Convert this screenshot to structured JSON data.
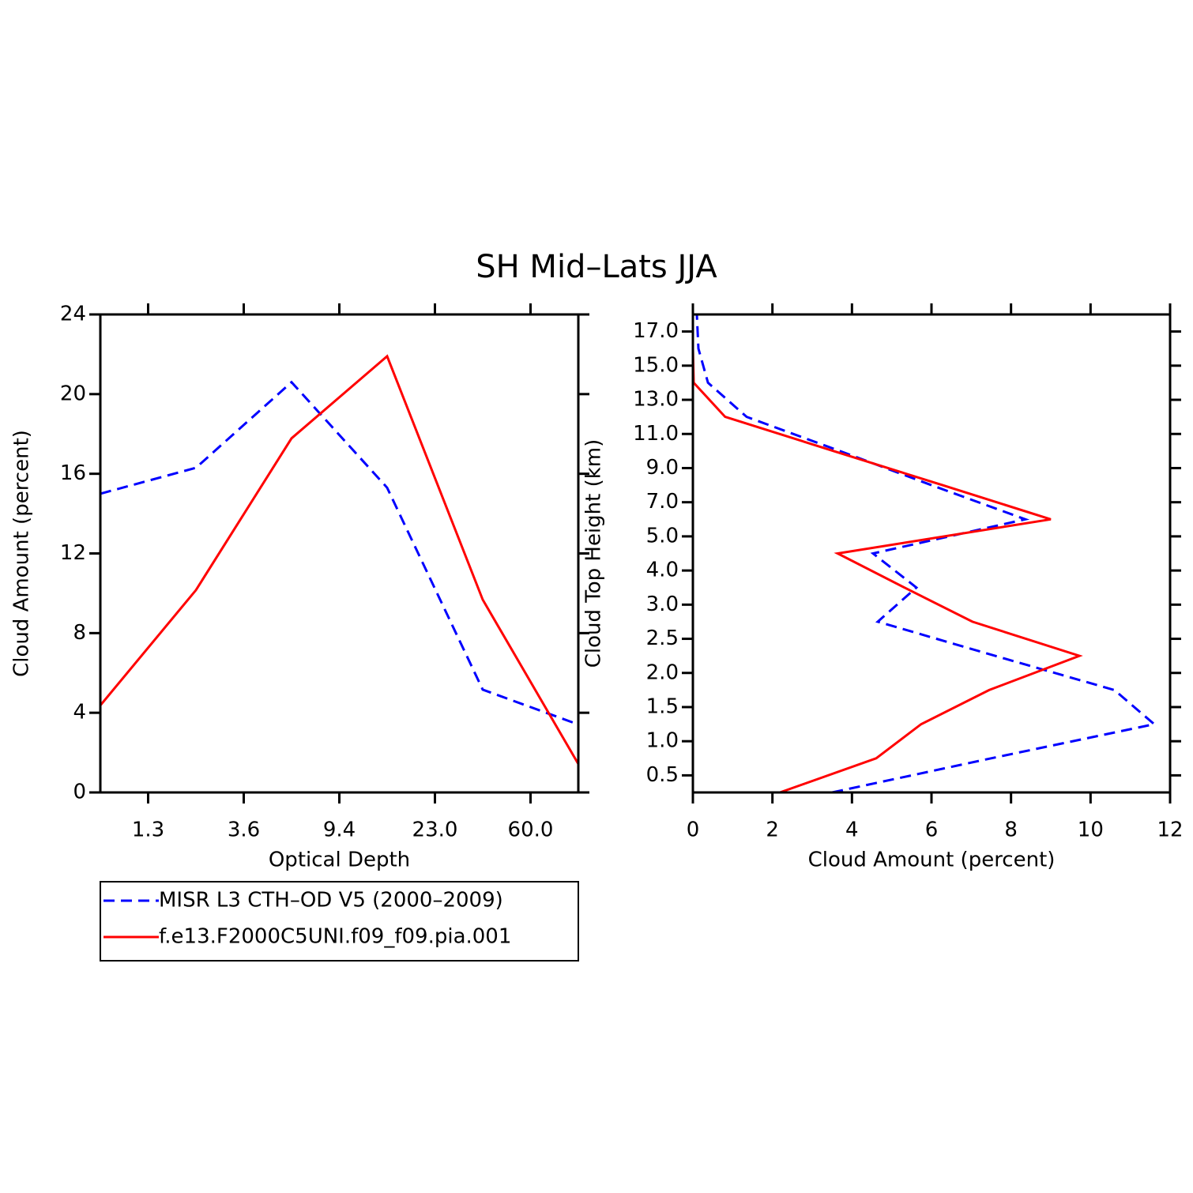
{
  "title": "SH Mid–Lats JJA",
  "chart_data": [
    {
      "type": "line",
      "orientation": "vertical",
      "xlabel": "Optical Depth",
      "ylabel": "Cloud Amount (percent)",
      "x": [
        0,
        1,
        2,
        3,
        4,
        5
      ],
      "xlim": [
        0,
        5
      ],
      "xticks": [
        {
          "value": 0.5,
          "label": "1.3"
        },
        {
          "value": 1.5,
          "label": "3.6"
        },
        {
          "value": 2.5,
          "label": "9.4"
        },
        {
          "value": 3.5,
          "label": "23.0"
        },
        {
          "value": 4.5,
          "label": "60.0"
        }
      ],
      "ylim": [
        0,
        24
      ],
      "yticks": [
        0,
        4,
        8,
        12,
        16,
        20,
        24
      ],
      "grid": false,
      "legend": "below",
      "series": [
        {
          "name": "MISR L3 CTH–OD V5 (2000–2009)",
          "color": "#0000ff",
          "style": "dashed",
          "values": [
            15.0,
            16.3,
            20.6,
            15.3,
            5.16,
            3.41
          ]
        },
        {
          "name": "f.e13.F2000C5UNI.f09_f09.pia.001",
          "color": "#ff0000",
          "style": "solid",
          "values": [
            4.37,
            10.16,
            17.78,
            21.9,
            9.68,
            1.43
          ]
        }
      ]
    },
    {
      "type": "line",
      "orientation": "horizontal",
      "xlabel": "Cloud Amount (percent)",
      "ylabel": "Cloud Top Height (km)",
      "y": [
        0,
        1,
        2,
        3,
        4,
        5,
        6,
        7,
        8,
        9,
        10,
        11,
        12,
        13,
        14
      ],
      "ylim": [
        0,
        14
      ],
      "yticks": [
        {
          "value": 0.5,
          "label": "0.5"
        },
        {
          "value": 1.5,
          "label": "1.0"
        },
        {
          "value": 2.5,
          "label": "1.5"
        },
        {
          "value": 3.5,
          "label": "2.0"
        },
        {
          "value": 4.5,
          "label": "2.5"
        },
        {
          "value": 5.5,
          "label": "3.0"
        },
        {
          "value": 6.5,
          "label": "4.0"
        },
        {
          "value": 7.5,
          "label": "5.0"
        },
        {
          "value": 8.5,
          "label": "7.0"
        },
        {
          "value": 9.5,
          "label": "9.0"
        },
        {
          "value": 10.5,
          "label": "11.0"
        },
        {
          "value": 11.5,
          "label": "13.0"
        },
        {
          "value": 12.5,
          "label": "15.0"
        },
        {
          "value": 13.5,
          "label": "17.0"
        }
      ],
      "xlim": [
        0,
        12
      ],
      "xticks": [
        0,
        2,
        4,
        6,
        8,
        10,
        12
      ],
      "grid": false,
      "series": [
        {
          "color": "#0000ff",
          "style": "dashed",
          "values": [
            3.5,
            7.5,
            11.6,
            10.6,
            7.6,
            4.65,
            5.62,
            4.53,
            8.36,
            6.0,
            3.7,
            1.35,
            0.38,
            0.14,
            0.1
          ]
        },
        {
          "color": "#ff0000",
          "style": "solid",
          "values": [
            2.19,
            4.61,
            5.74,
            7.45,
            9.72,
            7.03,
            5.32,
            3.64,
            9.0,
            6.28,
            3.54,
            0.81,
            0.02,
            0,
            0
          ]
        }
      ]
    }
  ]
}
